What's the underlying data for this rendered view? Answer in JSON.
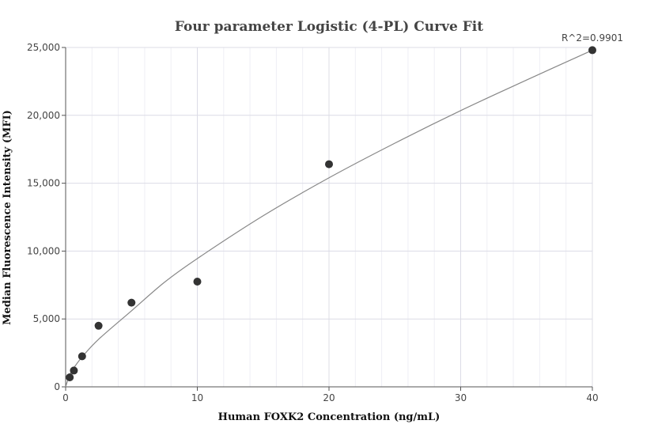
{
  "chart_data": {
    "type": "scatter",
    "title": "Four parameter Logistic (4-PL) Curve Fit",
    "xlabel": "Human FOXK2 Concentration (ng/mL)",
    "ylabel": "Median Fluorescence Intensity (MFI)",
    "xlim": [
      0,
      40
    ],
    "ylim": [
      0,
      25000
    ],
    "x_ticks": [
      0,
      10,
      20,
      30,
      40
    ],
    "x_tick_labels": [
      "0",
      "10",
      "20",
      "30",
      "40"
    ],
    "y_ticks": [
      0,
      5000,
      10000,
      15000,
      20000,
      25000
    ],
    "y_tick_labels": [
      "0",
      "5,000",
      "10,000",
      "15,000",
      "20,000",
      "25,000"
    ],
    "grid": true,
    "annotation": "R^2=0.9901",
    "series": [
      {
        "kind": "points",
        "x": [
          0.3125,
          0.625,
          1.25,
          2.5,
          5,
          10,
          20,
          40
        ],
        "y": [
          700,
          1200,
          2250,
          4500,
          6200,
          7750,
          16400,
          24800
        ]
      },
      {
        "kind": "fit-curve",
        "x": [
          0,
          0.3125,
          0.625,
          1.25,
          2.5,
          5,
          7.5,
          10,
          15,
          20,
          25,
          30,
          35,
          40
        ],
        "y": [
          0,
          900,
          1400,
          2200,
          3500,
          5600,
          7700,
          9450,
          12600,
          15400,
          17950,
          20350,
          22600,
          24800
        ]
      }
    ],
    "colors": {
      "points": "#333333",
      "curve": "#888888",
      "grid": "#e6e6ee",
      "axis": "#555555"
    }
  }
}
